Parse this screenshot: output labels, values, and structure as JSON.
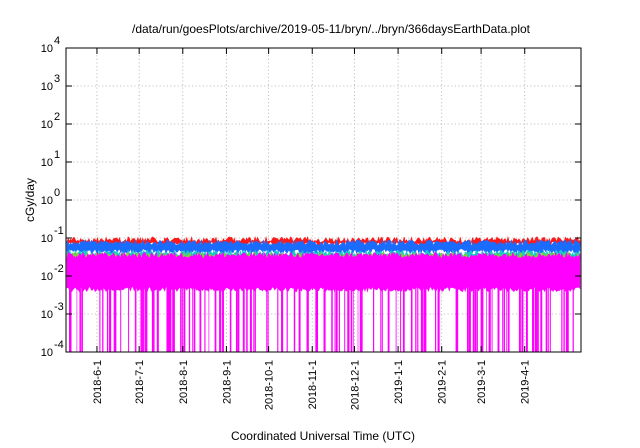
{
  "chart_data": {
    "type": "area",
    "title": "/data/run/goesPlots/archive/2019-05-11/bryn/../bryn/366daysEarthData.plot",
    "xlabel": "Coordinated Universal Time (UTC)",
    "ylabel": "cGy/day",
    "y_scale": "log",
    "ylim": [
      0.0001,
      10000
    ],
    "xlim": [
      "2018-05-10",
      "2019-05-11"
    ],
    "y_ticks": [
      {
        "value": 0.0001,
        "base": "10",
        "exp": "-4"
      },
      {
        "value": 0.001,
        "base": "10",
        "exp": "-3"
      },
      {
        "value": 0.01,
        "base": "10",
        "exp": "-2"
      },
      {
        "value": 0.1,
        "base": "10",
        "exp": "-1"
      },
      {
        "value": 1,
        "base": "10",
        "exp": "0"
      },
      {
        "value": 10,
        "base": "10",
        "exp": "1"
      },
      {
        "value": 100,
        "base": "10",
        "exp": "2"
      },
      {
        "value": 1000,
        "base": "10",
        "exp": "3"
      },
      {
        "value": 10000,
        "base": "10",
        "exp": "4"
      }
    ],
    "x_ticks": [
      {
        "label": "2018-6-1",
        "date": "2018-06-01"
      },
      {
        "label": "2018-7-1",
        "date": "2018-07-01"
      },
      {
        "label": "2018-8-1",
        "date": "2018-08-01"
      },
      {
        "label": "2018-9-1",
        "date": "2018-09-01"
      },
      {
        "label": "2018-10-1",
        "date": "2018-10-01"
      },
      {
        "label": "2018-11-1",
        "date": "2018-11-01"
      },
      {
        "label": "2018-12-1",
        "date": "2018-12-01"
      },
      {
        "label": "2019-1-1",
        "date": "2019-01-01"
      },
      {
        "label": "2019-2-1",
        "date": "2019-02-01"
      },
      {
        "label": "2019-3-1",
        "date": "2019-03-01"
      },
      {
        "label": "2019-4-1",
        "date": "2019-04-01"
      }
    ],
    "grid": true,
    "series": [
      {
        "color": "#ff1a1a",
        "typical_range": [
          0.07,
          0.09
        ]
      },
      {
        "color": "#1a6cff",
        "typical_range": [
          0.045,
          0.075
        ]
      },
      {
        "color": "#17c9c9",
        "typical_range": [
          0.03,
          0.04
        ]
      },
      {
        "color": "#7fcf3b",
        "typical_range": [
          0.025,
          0.035
        ]
      },
      {
        "color": "#ff00ff",
        "typical_range": [
          0.0045,
          0.035
        ],
        "dropouts_to": 0.0001
      }
    ]
  }
}
